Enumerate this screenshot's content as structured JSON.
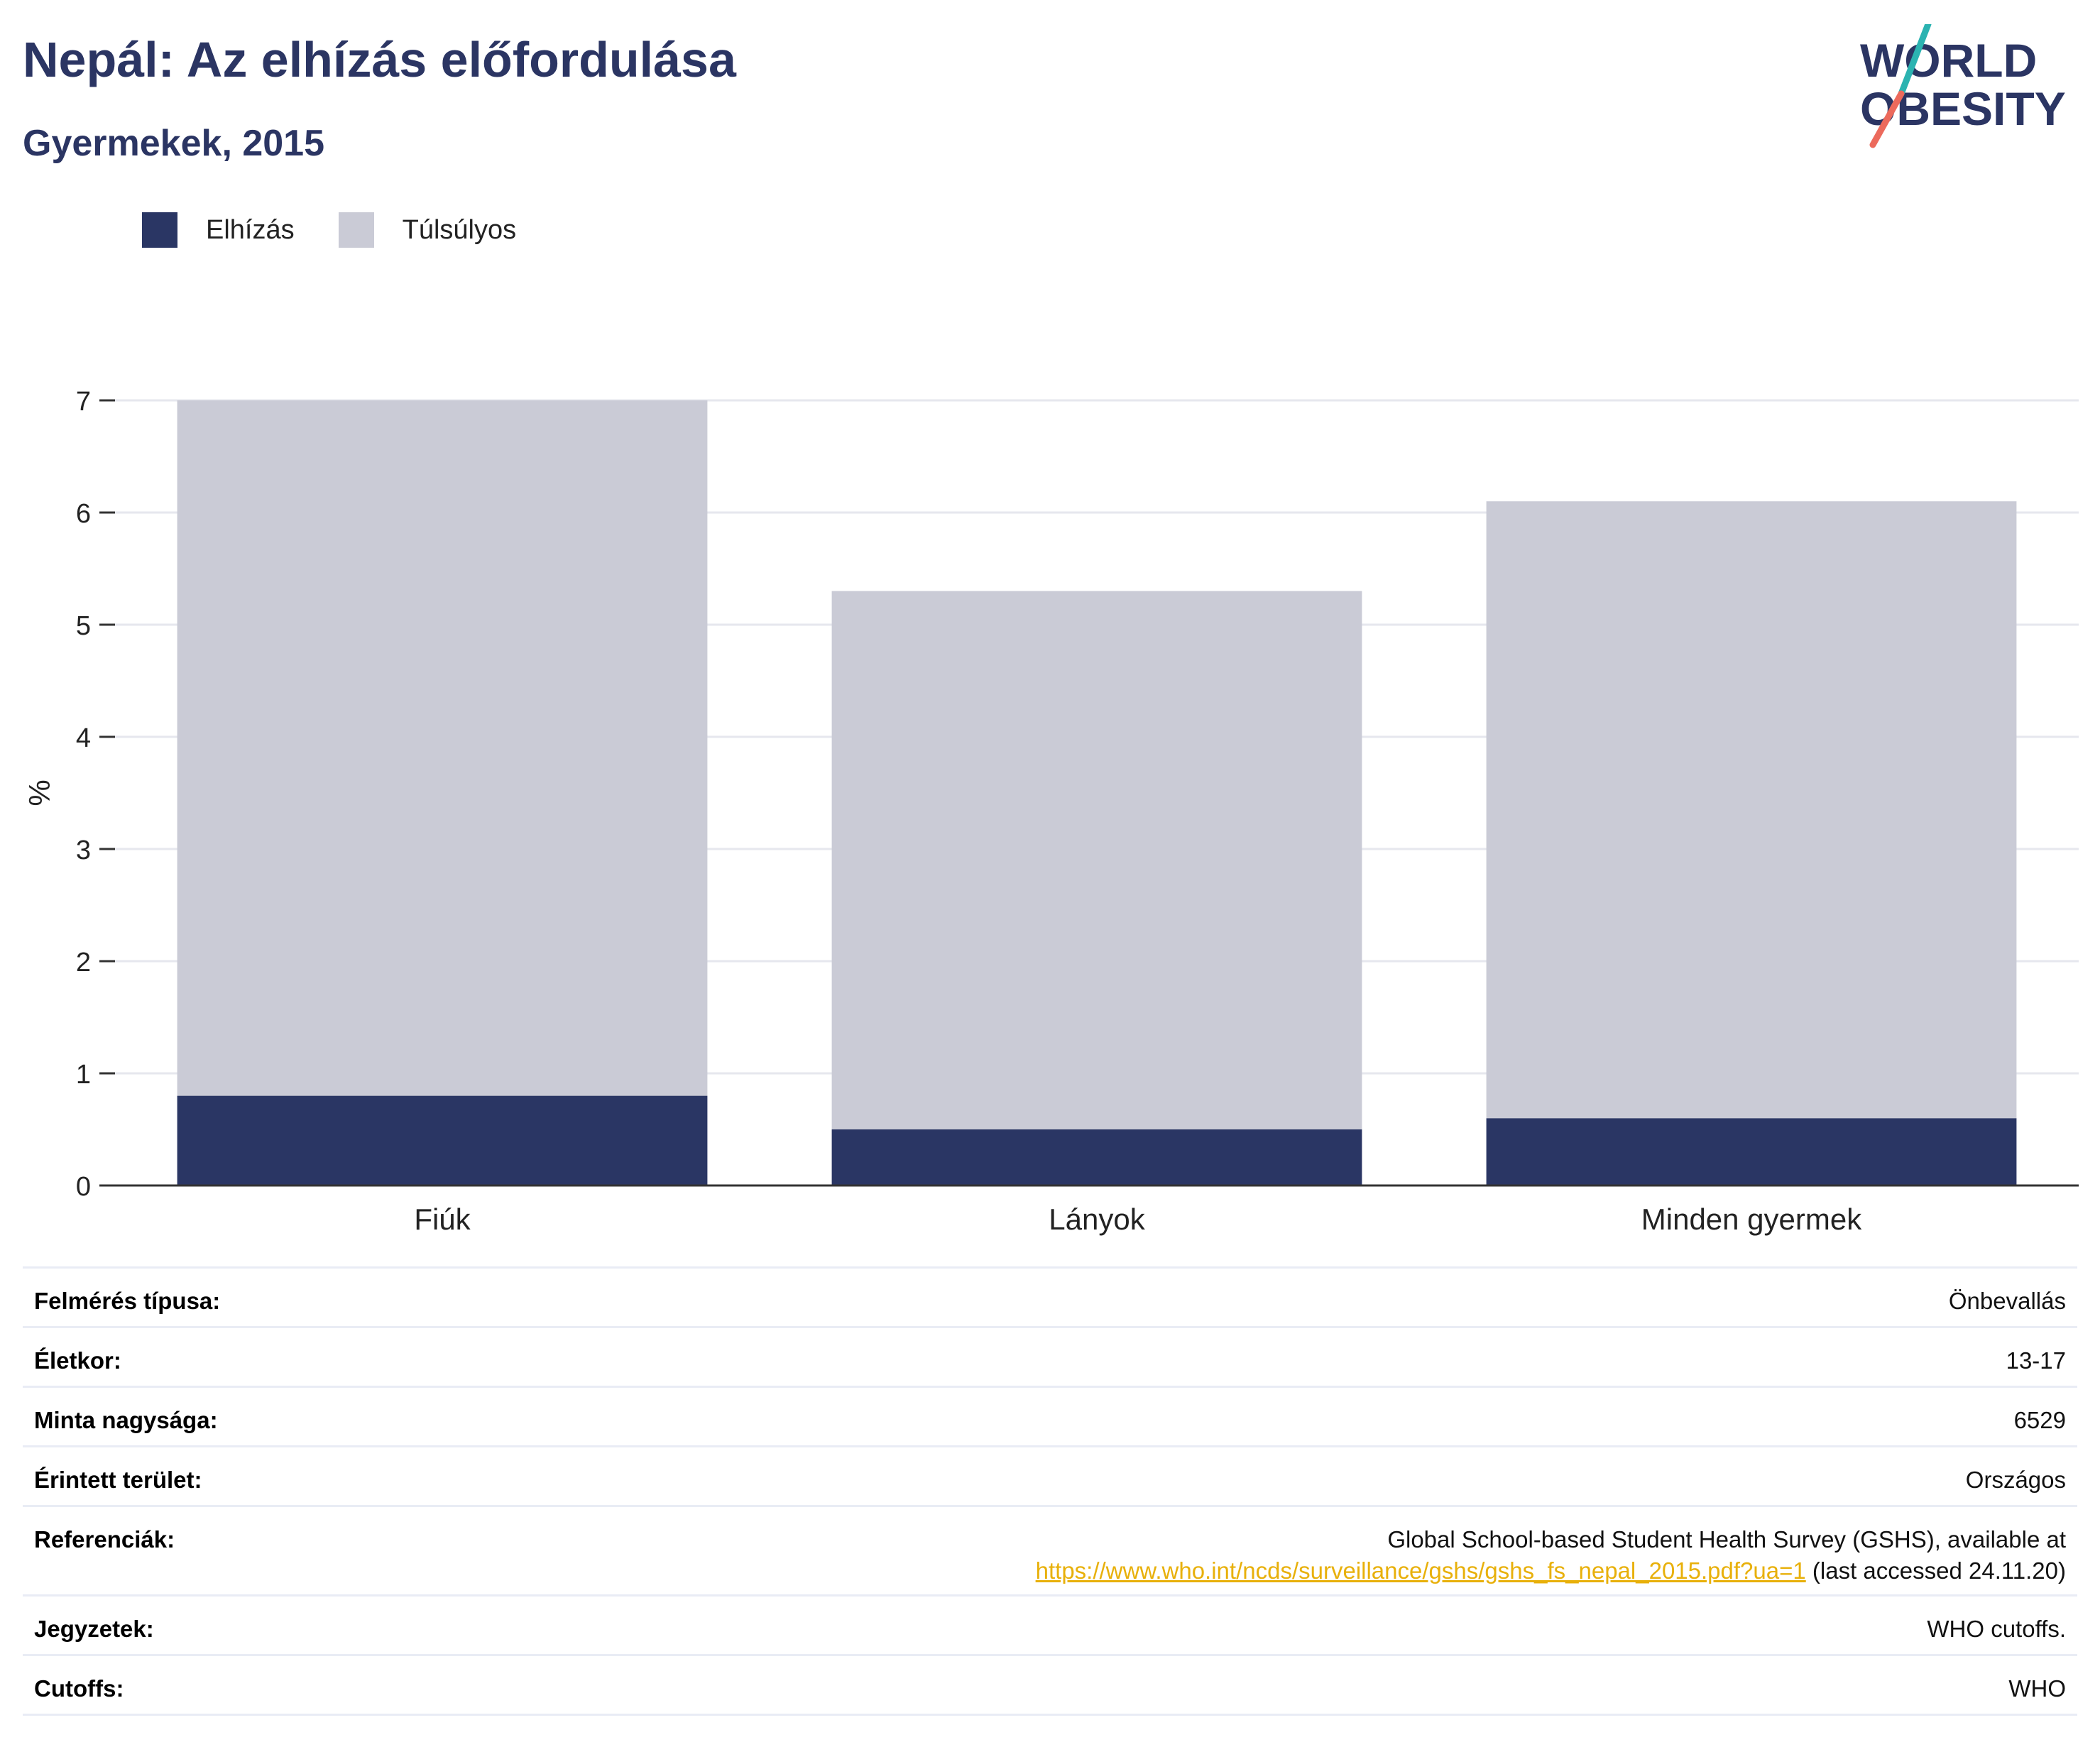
{
  "header": {
    "title": "Nepál: Az elhízás előfordulása",
    "subtitle": "Gyermekek, 2015",
    "logo_line1": "WORLD",
    "logo_line2": "OBESITY"
  },
  "colors": {
    "obesity": "#2a3664",
    "overweight": "#cacbd6",
    "title": "#2b3563",
    "link": "#e8b00a",
    "logo_teal": "#2bb3b1",
    "logo_coral": "#ec6a5c"
  },
  "chart_data": {
    "type": "bar",
    "stacked": true,
    "categories": [
      "Fiúk",
      "Lányok",
      "Minden gyermek"
    ],
    "series": [
      {
        "name": "Elhízás",
        "values": [
          0.8,
          0.5,
          0.6
        ]
      },
      {
        "name": "Túlsúlyos",
        "values": [
          6.2,
          4.8,
          5.5
        ]
      }
    ],
    "ylabel": "%",
    "xlabel": "",
    "ylim": [
      0,
      7
    ],
    "yticks": [
      0,
      1,
      2,
      3,
      4,
      5,
      6,
      7
    ],
    "grid": true,
    "legend_position": "top-left"
  },
  "details": {
    "survey_type": {
      "label": "Felmérés típusa:",
      "value": "Önbevallás"
    },
    "age": {
      "label": "Életkor:",
      "value": "13-17"
    },
    "sample_size": {
      "label": "Minta nagysága:",
      "value": "6529"
    },
    "area": {
      "label": "Érintett terület:",
      "value": "Országos"
    },
    "references": {
      "label": "Referenciák:",
      "line1": "Global School-based Student Health Survey (GSHS), available at",
      "link": "https://www.who.int/ncds/surveillance/gshs/gshs_fs_nepal_2015.pdf?ua=1",
      "suffix": " (last accessed 24.11.20)"
    },
    "notes": {
      "label": "Jegyzetek:",
      "value": "WHO cutoffs."
    },
    "cutoffs": {
      "label": "Cutoffs:",
      "value": "WHO"
    }
  }
}
